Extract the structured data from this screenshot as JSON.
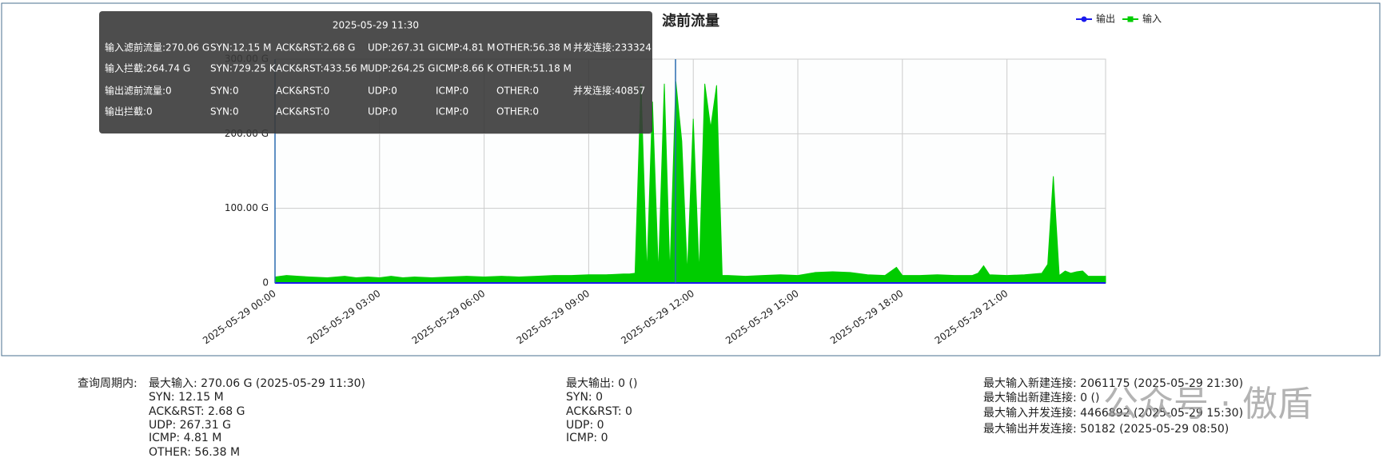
{
  "chart_data": {
    "type": "area",
    "title": "滤前流量",
    "legend": "top-right",
    "grid": true,
    "x": [
      0,
      0.33,
      0.67,
      1,
      1.5,
      2,
      2.33,
      2.67,
      3,
      3.33,
      3.67,
      4,
      4.5,
      5,
      5.5,
      6,
      6.5,
      7,
      7.5,
      8,
      8.5,
      9,
      9.5,
      10,
      10.17,
      10.33,
      10.5,
      10.67,
      10.83,
      11,
      11.17,
      11.33,
      11.5,
      11.67,
      11.83,
      12,
      12.17,
      12.33,
      12.5,
      12.67,
      12.83,
      13,
      13.5,
      14,
      14.5,
      15,
      15.5,
      16,
      16.5,
      17,
      17.5,
      17.83,
      18,
      18.5,
      19,
      19.5,
      20,
      20.17,
      20.33,
      20.5,
      21,
      21.5,
      22,
      22.17,
      22.33,
      22.5,
      22.67,
      22.83,
      23,
      23.17,
      23.33,
      23.83
    ],
    "xlim": [
      0,
      23.83
    ],
    "xticks": [
      {
        "value": 0,
        "label": "2025-05-29 00:00"
      },
      {
        "value": 3,
        "label": "2025-05-29 03:00"
      },
      {
        "value": 6,
        "label": "2025-05-29 06:00"
      },
      {
        "value": 9,
        "label": "2025-05-29 09:00"
      },
      {
        "value": 12,
        "label": "2025-05-29 12:00"
      },
      {
        "value": 15,
        "label": "2025-05-29 15:00"
      },
      {
        "value": 18,
        "label": "2025-05-29 18:00"
      },
      {
        "value": 21,
        "label": "2025-05-29 21:00"
      }
    ],
    "ylim": [
      0,
      300
    ],
    "yticks": [
      0,
      {
        "value": 100,
        "label": "100.00 G"
      },
      {
        "value": 200,
        "label": "200.00 G"
      },
      {
        "value": 300,
        "label": "300.00 G"
      }
    ],
    "series": [
      {
        "name": "输出",
        "color": "#1a1aee",
        "values": [
          0,
          0,
          0,
          0,
          0,
          0,
          0,
          0,
          0,
          0,
          0,
          0,
          0,
          0,
          0,
          0,
          0,
          0,
          0,
          0,
          0,
          0,
          0,
          0,
          0,
          0,
          0,
          0,
          0,
          0,
          0,
          0,
          0,
          0,
          0,
          0,
          0,
          0,
          0,
          0,
          0,
          0,
          0,
          0,
          0,
          0,
          0,
          0,
          0,
          0,
          0,
          0,
          0,
          0,
          0,
          0,
          0,
          0,
          0,
          0,
          0,
          0,
          0,
          0,
          0,
          0,
          0,
          0,
          0,
          0,
          0,
          0
        ]
      },
      {
        "name": "输入",
        "color": "#00cc00",
        "values": [
          8,
          10,
          9,
          8,
          7,
          9,
          7,
          8,
          7,
          9,
          7,
          8,
          7,
          8,
          9,
          8,
          9,
          8,
          9,
          10,
          10,
          11,
          11,
          12,
          12,
          13,
          267,
          12,
          243,
          12,
          267,
          12,
          270.06,
          190,
          12,
          220,
          12,
          267,
          208,
          265,
          10,
          10,
          9,
          10,
          11,
          10,
          14,
          15,
          14,
          11,
          10,
          21,
          10,
          10,
          11,
          10,
          10,
          13,
          23,
          11,
          10,
          11,
          13,
          25,
          143,
          10,
          16,
          13,
          15,
          16,
          9,
          9
        ]
      }
    ]
  },
  "tooltip": {
    "title": "2025-05-29 11:30",
    "rows": [
      [
        "输入滤前流量:270.06 G",
        "SYN:12.15 M",
        "ACK&RST:2.68 G",
        "UDP:267.31 G",
        "ICMP:4.81 M",
        "OTHER:56.38 M",
        "并发连接:233324"
      ],
      [
        "输入拦截:264.74 G",
        "SYN:729.25 K",
        "ACK&RST:433.56 M",
        "UDP:264.25 G",
        "ICMP:8.66 K",
        "OTHER:51.18 M"
      ],
      [
        "输出滤前流量:0",
        "SYN:0",
        "ACK&RST:0",
        "UDP:0",
        "ICMP:0",
        "OTHER:0",
        "并发连接:40857"
      ],
      [
        "输出拦截:0",
        "SYN:0",
        "ACK&RST:0",
        "UDP:0",
        "ICMP:0",
        "OTHER:0"
      ]
    ]
  },
  "summary": {
    "label": "查询周期内:",
    "columns": [
      [
        "最大输入: 270.06 G (2025-05-29 11:30)",
        "SYN: 12.15 M",
        "ACK&RST: 2.68 G",
        "UDP: 267.31 G",
        "ICMP: 4.81 M",
        "OTHER: 56.38 M"
      ],
      [
        "最大输出: 0 ()",
        "SYN: 0",
        "ACK&RST: 0",
        "UDP: 0",
        "ICMP: 0"
      ],
      [
        "最大输入新建连接: 2061175 (2025-05-29 21:30)",
        "最大输出新建连接: 0 ()",
        "最大输入并发连接: 4466892 (2025-05-29 15:30)",
        "最大输出并发连接: 50182 (2025-05-29 08:50)"
      ]
    ]
  },
  "watermark": "公众号 · 傲盾"
}
